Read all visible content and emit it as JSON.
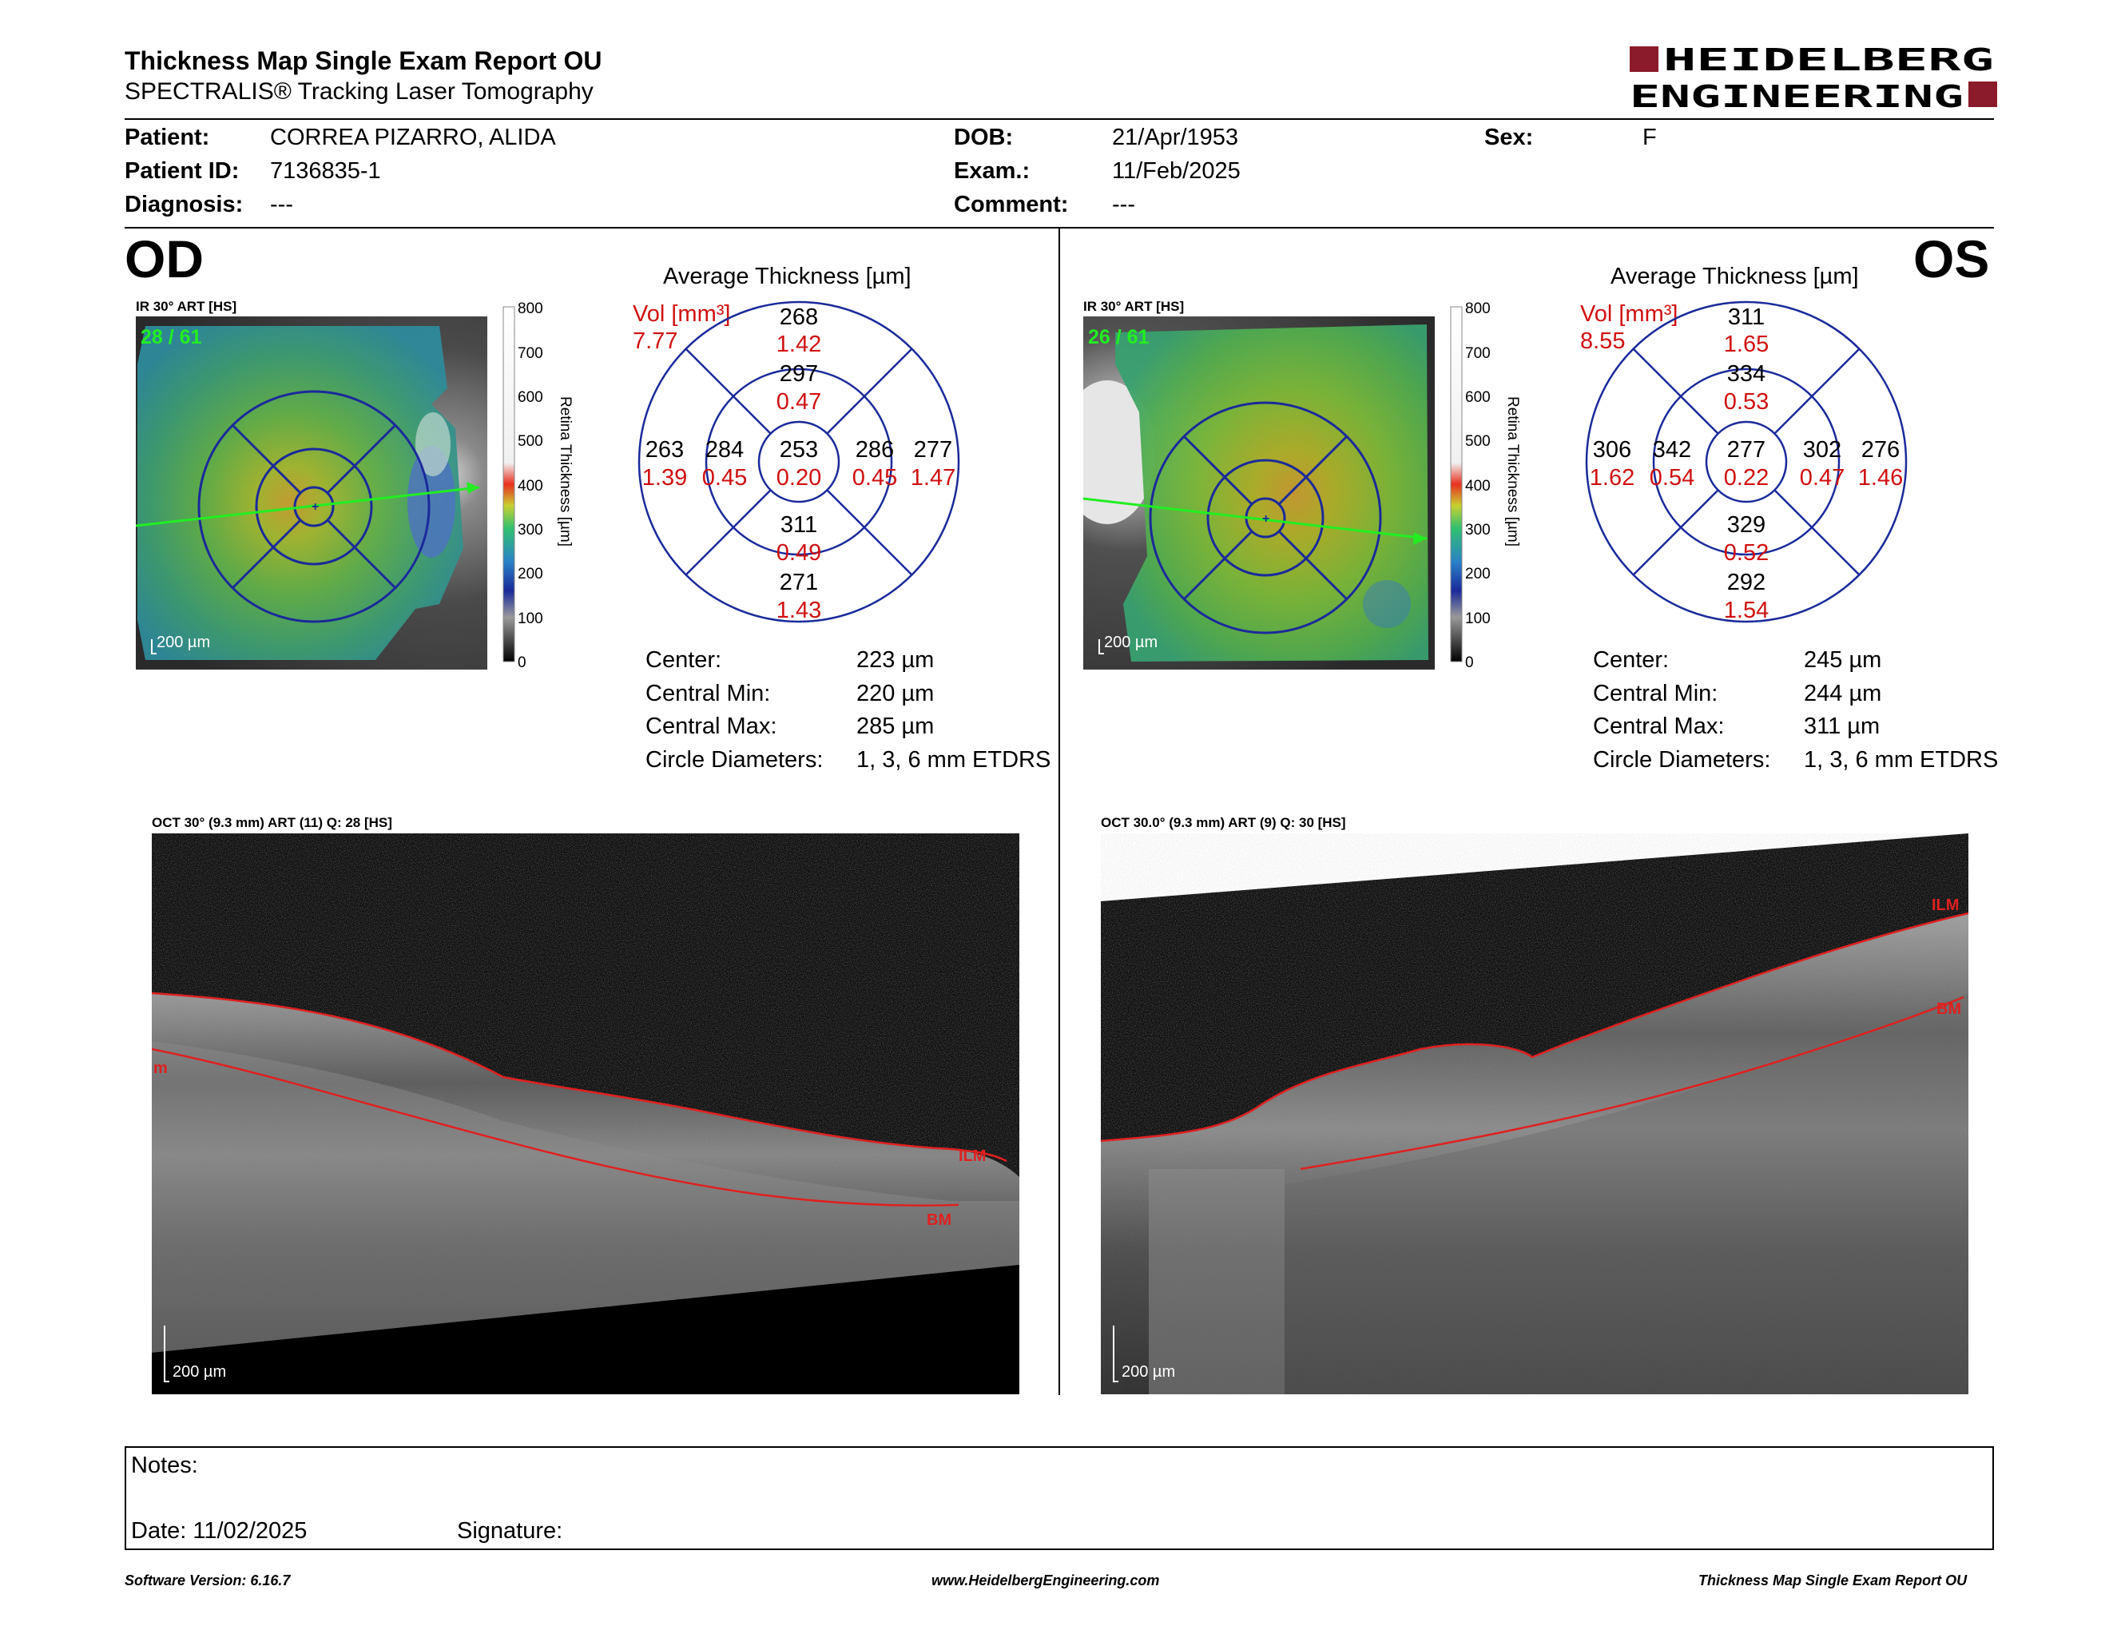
{
  "header": {
    "title": "Thickness Map Single Exam Report OU",
    "subtitle": "SPECTRALIS® Tracking Laser Tomography",
    "logo_line1": "HEIDELBERG",
    "logo_line2": "ENGINEERING",
    "brand_color": "#8b1a2a"
  },
  "patient": {
    "patient_label": "Patient:",
    "patient_value": "CORREA PIZARRO, ALIDA",
    "id_label": "Patient ID:",
    "id_value": "7136835-1",
    "diagnosis_label": "Diagnosis:",
    "diagnosis_value": "---",
    "dob_label": "DOB:",
    "dob_value": "21/Apr/1953",
    "exam_label": "Exam.:",
    "exam_value": "11/Feb/2025",
    "comment_label": "Comment:",
    "comment_value": "---",
    "sex_label": "Sex:",
    "sex_value": "F"
  },
  "od": {
    "eye": "OD",
    "ir_label": "IR 30° ART [HS]",
    "frames": "28 / 61",
    "scale": "200 µm",
    "avg_title": "Average Thickness [µm]",
    "vol_label": "Vol [mm³]",
    "vol_value": "7.77",
    "sectors": {
      "outer_top": [
        "268",
        "1.42"
      ],
      "inner_top": [
        "297",
        "0.47"
      ],
      "outer_left": [
        "263",
        "1.39"
      ],
      "inner_left": [
        "284",
        "0.45"
      ],
      "center": [
        "253",
        "0.20"
      ],
      "inner_right": [
        "286",
        "0.45"
      ],
      "outer_right": [
        "277",
        "1.47"
      ],
      "inner_bottom": [
        "311",
        "0.49"
      ],
      "outer_bottom": [
        "271",
        "1.43"
      ]
    },
    "stats": {
      "center_label": "Center:",
      "center_value": "223 µm",
      "min_label": "Central Min:",
      "min_value": "220 µm",
      "max_label": "Central Max:",
      "max_value": "285 µm",
      "diam_label": "Circle Diameters:",
      "diam_value": "1, 3, 6 mm ETDRS"
    },
    "oct_label": "OCT 30° (9.3 mm) ART (11) Q: 28 [HS]",
    "oct_scale": "200 µm",
    "ilm": "ILM",
    "bm": "BM",
    "edge_label": "m"
  },
  "os": {
    "eye": "OS",
    "ir_label": "IR 30° ART [HS]",
    "frames": "26 / 61",
    "scale": "200 µm",
    "avg_title": "Average Thickness [µm]",
    "vol_label": "Vol [mm³]",
    "vol_value": "8.55",
    "sectors": {
      "outer_top": [
        "311",
        "1.65"
      ],
      "inner_top": [
        "334",
        "0.53"
      ],
      "outer_left": [
        "306",
        "1.62"
      ],
      "inner_left": [
        "342",
        "0.54"
      ],
      "center": [
        "277",
        "0.22"
      ],
      "inner_right": [
        "302",
        "0.47"
      ],
      "outer_right": [
        "276",
        "1.46"
      ],
      "inner_bottom": [
        "329",
        "0.52"
      ],
      "outer_bottom": [
        "292",
        "1.54"
      ]
    },
    "stats": {
      "center_label": "Center:",
      "center_value": "245 µm",
      "min_label": "Central Min:",
      "min_value": "244 µm",
      "max_label": "Central Max:",
      "max_value": "311 µm",
      "diam_label": "Circle Diameters:",
      "diam_value": "1, 3, 6 mm ETDRS"
    },
    "oct_label": "OCT 30.0° (9.3 mm) ART (9) Q: 30 [HS]",
    "oct_scale": "200 µm",
    "ilm": "ILM",
    "bm": "BM"
  },
  "colorbar": {
    "ticks": [
      "800",
      "700",
      "600",
      "500",
      "400",
      "300",
      "200",
      "100",
      "0"
    ],
    "title": "Retina  Thickness [µm]"
  },
  "notes": {
    "notes_label": "Notes:",
    "date_label": "Date: 11/02/2025",
    "signature_label": "Signature:"
  },
  "footer": {
    "software": "Software Version: 6.16.7",
    "website": "www.HeidelbergEngineering.com",
    "report": "Thickness Map Single Exam Report OU"
  }
}
